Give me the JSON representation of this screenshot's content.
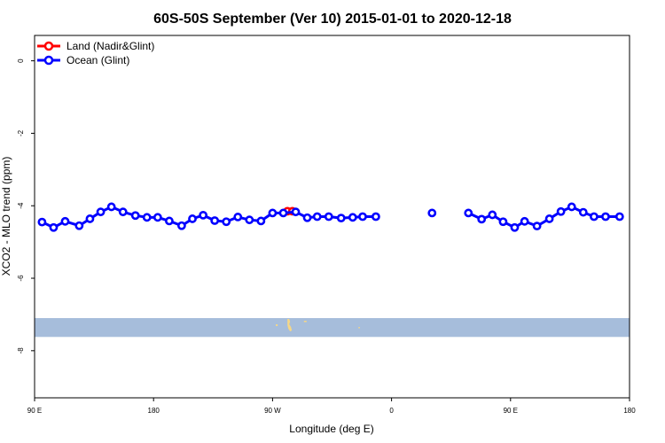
{
  "chart_data": {
    "type": "line",
    "title": "60S-50S September (Ver 10)   2015-01-01 to 2020-12-18",
    "xlabel": "Longitude (deg E)",
    "ylabel": "XCO2 - MLO trend (ppm)",
    "xlim": [
      90,
      450
    ],
    "ylim": [
      -9.3,
      0.7
    ],
    "x_ticks": [
      90,
      162,
      234,
      306,
      378,
      450
    ],
    "x_tick_labels": [
      "90 E",
      "180",
      "90 W",
      "0",
      "90 E",
      "180"
    ],
    "y_ticks": [
      0,
      -2,
      -4,
      -6,
      -8
    ],
    "y_tick_labels": [
      "0",
      "-2",
      "-4",
      "-6",
      "-8"
    ],
    "legend_position": "top-left",
    "grid": false,
    "series": [
      {
        "name": "Land (Nadir&Glint)",
        "color": "#ff0000",
        "x": [
          243,
          246
        ],
        "y": [
          -4.15,
          -4.15
        ],
        "segments": [
          [
            0,
            1
          ]
        ]
      },
      {
        "name": "Ocean (Glint)",
        "color": "#0000ff",
        "x": [
          94.5,
          101.5,
          108.5,
          117,
          123.5,
          130,
          136.5,
          143.5,
          151,
          158,
          164.5,
          171.5,
          179,
          185.5,
          192,
          199,
          206,
          213,
          220,
          227,
          234,
          240.5,
          248,
          255,
          261,
          268,
          275.5,
          282.5,
          288.5,
          296.5,
          330.5,
          352.5,
          360.5,
          367,
          373.5,
          380.5,
          386.5,
          394,
          401.5,
          408.5,
          415,
          422,
          428.5,
          435.5,
          444
        ],
        "y": [
          -4.45,
          -4.6,
          -4.43,
          -4.55,
          -4.36,
          -4.17,
          -4.03,
          -4.17,
          -4.27,
          -4.32,
          -4.32,
          -4.42,
          -4.55,
          -4.36,
          -4.26,
          -4.41,
          -4.44,
          -4.31,
          -4.39,
          -4.42,
          -4.2,
          -4.2,
          -4.17,
          -4.33,
          -4.3,
          -4.3,
          -4.34,
          -4.32,
          -4.3,
          -4.3,
          -4.2,
          -4.2,
          -4.37,
          -4.25,
          -4.44,
          -4.6,
          -4.43,
          -4.56,
          -4.36,
          -4.16,
          -4.03,
          -4.18,
          -4.3,
          -4.3,
          -4.3
        ],
        "segments": [
          [
            0,
            29
          ],
          [
            30,
            30
          ],
          [
            31,
            44
          ]
        ]
      }
    ],
    "map_strip": {
      "y_range": [
        -7.62,
        -7.1
      ],
      "color": "#a6bddb",
      "land_color": "#f5d787"
    }
  }
}
